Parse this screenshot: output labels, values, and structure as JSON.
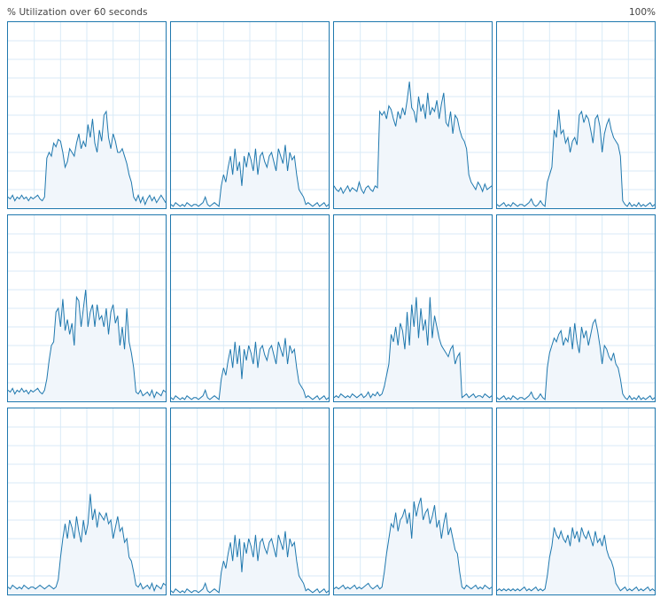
{
  "header": {
    "title": "% Utilization over 60 seconds",
    "max_label": "100%"
  },
  "colors": {
    "line": "#1f78ae",
    "fill": "#f1f6fb",
    "grid": "#d9eaf7",
    "border": "#1f78ae"
  },
  "chart_data": [
    {
      "type": "area",
      "ylim": [
        0,
        100
      ],
      "values": [
        6,
        5,
        7,
        4,
        6,
        5,
        7,
        5,
        6,
        4,
        6,
        5,
        6,
        7,
        5,
        4,
        6,
        27,
        30,
        28,
        35,
        33,
        37,
        36,
        30,
        22,
        25,
        32,
        30,
        28,
        35,
        40,
        32,
        36,
        33,
        45,
        38,
        48,
        35,
        30,
        42,
        36,
        50,
        52,
        38,
        32,
        40,
        36,
        30,
        30,
        32,
        28,
        24,
        18,
        14,
        6,
        4,
        7,
        3,
        6,
        2,
        5,
        7,
        4,
        6,
        3,
        5,
        7,
        5,
        3
      ]
    },
    {
      "type": "area",
      "ylim": [
        0,
        100
      ],
      "values": [
        2,
        1,
        3,
        2,
        1,
        2,
        1,
        3,
        2,
        1,
        2,
        2,
        1,
        2,
        3,
        6,
        2,
        1,
        2,
        3,
        2,
        1,
        12,
        18,
        14,
        22,
        28,
        18,
        32,
        20,
        25,
        12,
        28,
        22,
        30,
        26,
        20,
        32,
        18,
        28,
        30,
        25,
        22,
        28,
        30,
        25,
        20,
        32,
        28,
        24,
        34,
        20,
        30,
        26,
        28,
        18,
        10,
        8,
        6,
        2,
        3,
        2,
        1,
        2,
        3,
        1,
        2,
        3,
        1,
        2
      ]
    },
    {
      "type": "area",
      "ylim": [
        0,
        100
      ],
      "values": [
        12,
        10,
        9,
        11,
        8,
        10,
        12,
        9,
        11,
        10,
        9,
        14,
        10,
        8,
        11,
        12,
        10,
        9,
        12,
        11,
        52,
        50,
        52,
        48,
        55,
        53,
        48,
        44,
        52,
        48,
        54,
        50,
        58,
        68,
        54,
        52,
        46,
        60,
        52,
        56,
        48,
        62,
        50,
        54,
        52,
        58,
        48,
        56,
        62,
        46,
        44,
        52,
        40,
        50,
        48,
        42,
        38,
        36,
        32,
        18,
        14,
        12,
        10,
        14,
        12,
        9,
        13,
        10,
        11,
        12
      ]
    },
    {
      "type": "area",
      "ylim": [
        0,
        100
      ],
      "values": [
        2,
        1,
        2,
        3,
        1,
        2,
        1,
        3,
        2,
        1,
        2,
        2,
        1,
        2,
        3,
        5,
        2,
        1,
        2,
        4,
        2,
        1,
        14,
        18,
        22,
        42,
        38,
        53,
        40,
        42,
        35,
        38,
        30,
        36,
        38,
        34,
        50,
        52,
        46,
        50,
        48,
        42,
        35,
        48,
        50,
        44,
        30,
        40,
        45,
        48,
        42,
        38,
        36,
        34,
        28,
        4,
        2,
        1,
        3,
        1,
        2,
        1,
        3,
        1,
        2,
        1,
        2,
        3,
        1,
        2
      ]
    },
    {
      "type": "area",
      "ylim": [
        0,
        100
      ],
      "values": [
        6,
        5,
        7,
        4,
        6,
        5,
        7,
        5,
        6,
        4,
        6,
        5,
        6,
        7,
        5,
        4,
        6,
        12,
        22,
        30,
        32,
        48,
        50,
        40,
        55,
        38,
        44,
        36,
        42,
        30,
        56,
        54,
        40,
        50,
        60,
        40,
        48,
        52,
        40,
        52,
        44,
        46,
        40,
        50,
        36,
        48,
        52,
        42,
        46,
        30,
        40,
        28,
        50,
        32,
        26,
        18,
        5,
        4,
        6,
        3,
        4,
        5,
        3,
        6,
        2,
        5,
        4,
        3,
        6,
        5
      ]
    },
    {
      "type": "area",
      "ylim": [
        0,
        100
      ],
      "values": [
        2,
        1,
        3,
        2,
        1,
        2,
        1,
        3,
        2,
        1,
        2,
        2,
        1,
        2,
        3,
        6,
        2,
        1,
        2,
        3,
        2,
        1,
        12,
        18,
        14,
        22,
        28,
        18,
        32,
        20,
        30,
        12,
        28,
        22,
        30,
        26,
        20,
        32,
        18,
        28,
        30,
        25,
        22,
        28,
        30,
        25,
        20,
        32,
        28,
        24,
        34,
        20,
        30,
        26,
        28,
        18,
        10,
        8,
        6,
        2,
        3,
        2,
        1,
        2,
        3,
        1,
        2,
        3,
        1,
        2
      ]
    },
    {
      "type": "area",
      "ylim": [
        0,
        100
      ],
      "values": [
        2,
        3,
        2,
        4,
        3,
        2,
        3,
        2,
        4,
        3,
        2,
        3,
        4,
        2,
        3,
        5,
        2,
        4,
        3,
        5,
        3,
        4,
        8,
        14,
        20,
        36,
        32,
        40,
        30,
        42,
        38,
        28,
        48,
        30,
        52,
        40,
        56,
        34,
        50,
        38,
        44,
        30,
        56,
        34,
        46,
        40,
        34,
        30,
        28,
        26,
        24,
        28,
        30,
        20,
        24,
        26,
        2,
        3,
        4,
        2,
        3,
        4,
        2,
        3,
        3,
        2,
        4,
        3,
        2,
        3
      ]
    },
    {
      "type": "area",
      "ylim": [
        0,
        100
      ],
      "values": [
        2,
        1,
        2,
        3,
        1,
        2,
        1,
        3,
        2,
        1,
        2,
        2,
        1,
        2,
        3,
        5,
        2,
        1,
        2,
        4,
        2,
        1,
        18,
        26,
        30,
        34,
        32,
        36,
        38,
        30,
        34,
        32,
        40,
        28,
        42,
        32,
        26,
        40,
        34,
        38,
        30,
        36,
        42,
        44,
        38,
        30,
        20,
        30,
        28,
        24,
        22,
        26,
        20,
        18,
        12,
        4,
        2,
        1,
        3,
        1,
        2,
        1,
        3,
        1,
        2,
        1,
        2,
        3,
        1,
        2
      ]
    },
    {
      "type": "area",
      "ylim": [
        0,
        100
      ],
      "values": [
        4,
        3,
        5,
        4,
        3,
        4,
        3,
        5,
        4,
        3,
        4,
        4,
        3,
        4,
        5,
        4,
        3,
        4,
        5,
        4,
        3,
        4,
        8,
        20,
        30,
        38,
        30,
        40,
        36,
        30,
        42,
        34,
        28,
        40,
        32,
        38,
        54,
        40,
        46,
        36,
        44,
        42,
        40,
        44,
        38,
        40,
        30,
        36,
        42,
        34,
        36,
        28,
        30,
        20,
        18,
        12,
        5,
        4,
        6,
        3,
        4,
        5,
        3,
        6,
        2,
        5,
        4,
        3,
        6,
        5
      ]
    },
    {
      "type": "area",
      "ylim": [
        0,
        100
      ],
      "values": [
        2,
        1,
        3,
        2,
        1,
        2,
        1,
        3,
        2,
        1,
        2,
        2,
        1,
        2,
        3,
        6,
        2,
        1,
        2,
        3,
        2,
        1,
        12,
        18,
        14,
        22,
        28,
        18,
        32,
        20,
        30,
        12,
        28,
        22,
        30,
        26,
        20,
        32,
        18,
        28,
        30,
        25,
        22,
        28,
        30,
        25,
        20,
        32,
        28,
        24,
        34,
        20,
        30,
        26,
        28,
        18,
        10,
        8,
        6,
        2,
        3,
        2,
        1,
        2,
        3,
        1,
        2,
        3,
        1,
        2
      ]
    },
    {
      "type": "area",
      "ylim": [
        0,
        100
      ],
      "values": [
        3,
        4,
        3,
        4,
        5,
        3,
        4,
        3,
        4,
        5,
        3,
        4,
        3,
        4,
        5,
        6,
        4,
        3,
        4,
        5,
        3,
        4,
        12,
        22,
        30,
        38,
        36,
        44,
        34,
        40,
        42,
        46,
        38,
        44,
        30,
        50,
        42,
        48,
        52,
        40,
        44,
        46,
        38,
        42,
        48,
        36,
        40,
        30,
        38,
        44,
        32,
        36,
        30,
        24,
        22,
        12,
        4,
        3,
        5,
        4,
        3,
        4,
        5,
        3,
        4,
        3,
        5,
        4,
        3,
        4
      ]
    },
    {
      "type": "area",
      "ylim": [
        0,
        100
      ],
      "values": [
        2,
        3,
        2,
        3,
        2,
        3,
        2,
        3,
        2,
        3,
        2,
        3,
        4,
        2,
        3,
        2,
        3,
        4,
        2,
        3,
        2,
        3,
        10,
        20,
        26,
        36,
        32,
        30,
        34,
        30,
        28,
        32,
        26,
        36,
        30,
        34,
        28,
        36,
        32,
        30,
        34,
        30,
        26,
        34,
        28,
        30,
        26,
        32,
        24,
        20,
        18,
        14,
        6,
        4,
        2,
        3,
        4,
        2,
        3,
        2,
        3,
        4,
        2,
        3,
        2,
        3,
        4,
        2,
        3,
        2
      ]
    }
  ]
}
